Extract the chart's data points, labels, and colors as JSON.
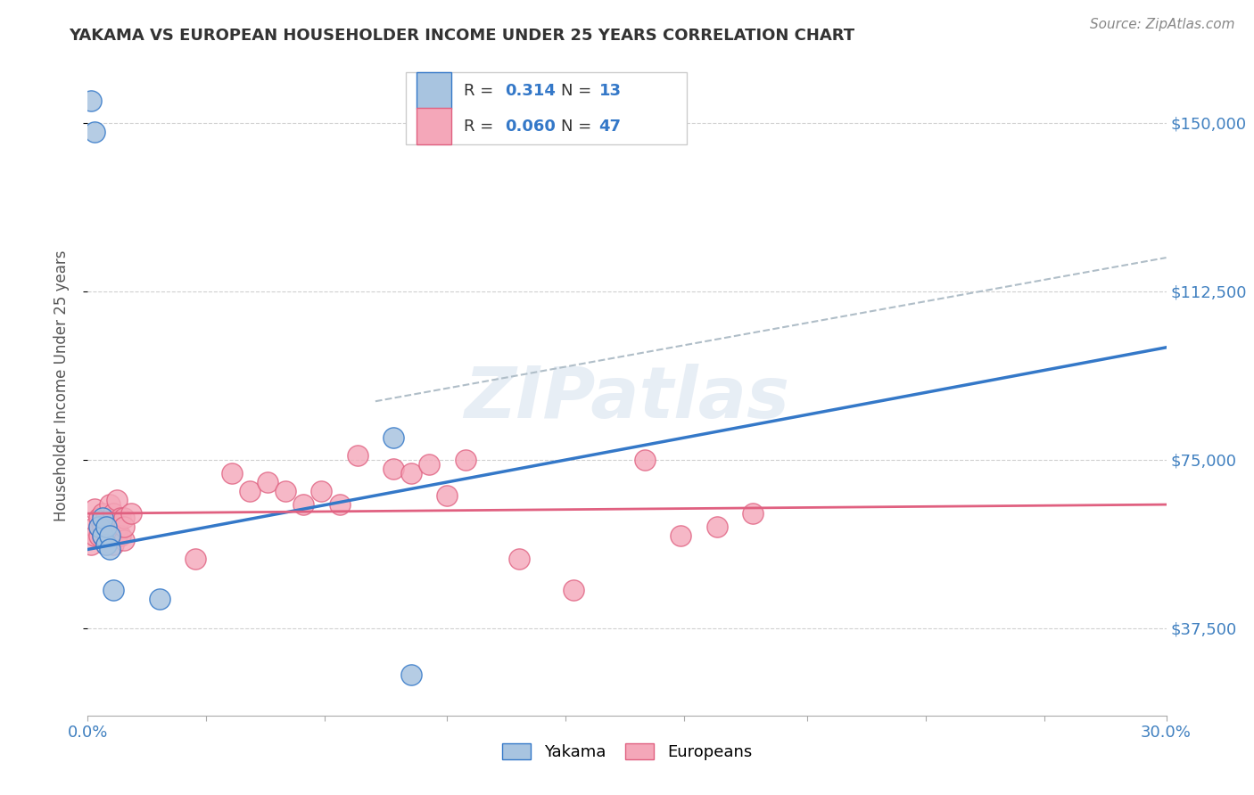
{
  "title": "YAKAMA VS EUROPEAN HOUSEHOLDER INCOME UNDER 25 YEARS CORRELATION CHART",
  "source": "Source: ZipAtlas.com",
  "ylabel_label": "Householder Income Under 25 years",
  "xlim": [
    0.0,
    0.3
  ],
  "ylim": [
    18000,
    165000
  ],
  "xticks": [
    0.0,
    0.033,
    0.066,
    0.1,
    0.133,
    0.166,
    0.2,
    0.233,
    0.266,
    0.3
  ],
  "ytick_values": [
    37500,
    75000,
    112500,
    150000
  ],
  "ytick_labels": [
    "$37,500",
    "$75,000",
    "$112,500",
    "$150,000"
  ],
  "watermark": "ZIPatlas",
  "yakama_color": "#a8c4e0",
  "european_color": "#f4a7b9",
  "yakama_line_color": "#3478c8",
  "european_line_color": "#e06080",
  "dashed_line_color": "#b0bec8",
  "background_color": "#ffffff",
  "grid_color": "#d0d0d0",
  "yakama_scatter": [
    [
      0.001,
      155000
    ],
    [
      0.002,
      148000
    ],
    [
      0.003,
      60000
    ],
    [
      0.004,
      58000
    ],
    [
      0.004,
      62000
    ],
    [
      0.005,
      56000
    ],
    [
      0.005,
      60000
    ],
    [
      0.006,
      58000
    ],
    [
      0.006,
      55000
    ],
    [
      0.007,
      46000
    ],
    [
      0.02,
      44000
    ],
    [
      0.085,
      80000
    ],
    [
      0.09,
      27000
    ]
  ],
  "european_scatter": [
    [
      0.001,
      56000
    ],
    [
      0.002,
      60000
    ],
    [
      0.002,
      58000
    ],
    [
      0.002,
      64000
    ],
    [
      0.003,
      58000
    ],
    [
      0.003,
      60000
    ],
    [
      0.003,
      62000
    ],
    [
      0.004,
      58000
    ],
    [
      0.004,
      63000
    ],
    [
      0.004,
      60000
    ],
    [
      0.005,
      60000
    ],
    [
      0.005,
      56000
    ],
    [
      0.005,
      62000
    ],
    [
      0.006,
      58000
    ],
    [
      0.006,
      60000
    ],
    [
      0.006,
      65000
    ],
    [
      0.007,
      56000
    ],
    [
      0.007,
      63000
    ],
    [
      0.008,
      60000
    ],
    [
      0.008,
      58000
    ],
    [
      0.008,
      66000
    ],
    [
      0.009,
      62000
    ],
    [
      0.009,
      58000
    ],
    [
      0.01,
      57000
    ],
    [
      0.01,
      62000
    ],
    [
      0.01,
      60000
    ],
    [
      0.012,
      63000
    ],
    [
      0.03,
      53000
    ],
    [
      0.04,
      72000
    ],
    [
      0.045,
      68000
    ],
    [
      0.05,
      70000
    ],
    [
      0.055,
      68000
    ],
    [
      0.06,
      65000
    ],
    [
      0.065,
      68000
    ],
    [
      0.07,
      65000
    ],
    [
      0.075,
      76000
    ],
    [
      0.085,
      73000
    ],
    [
      0.09,
      72000
    ],
    [
      0.095,
      74000
    ],
    [
      0.1,
      67000
    ],
    [
      0.105,
      75000
    ],
    [
      0.12,
      53000
    ],
    [
      0.135,
      46000
    ],
    [
      0.155,
      75000
    ],
    [
      0.165,
      58000
    ],
    [
      0.175,
      60000
    ],
    [
      0.185,
      63000
    ]
  ],
  "yakama_trend": [
    0.0,
    0.3
  ],
  "yakama_trend_y": [
    55000,
    100000
  ],
  "european_trend": [
    0.0,
    0.3
  ],
  "european_trend_y": [
    63000,
    65000
  ],
  "dashed_line_x": [
    0.08,
    0.3
  ],
  "dashed_line_y": [
    88000,
    120000
  ]
}
